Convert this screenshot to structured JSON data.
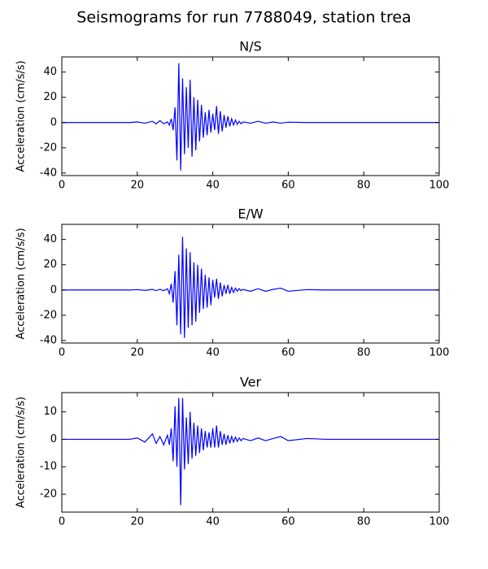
{
  "title": "Seismograms for run 7788049, station trea",
  "chart_data": [
    {
      "type": "line",
      "title": "N/S",
      "ylabel": "Acceleration (cm/s/s)",
      "xlim": [
        0,
        100
      ],
      "xticks": [
        0,
        20,
        40,
        60,
        80,
        100
      ],
      "ylim": [
        -42,
        52
      ],
      "yticks": [
        -40,
        -20,
        0,
        20,
        40
      ],
      "color": "#0000ff",
      "x": [
        0,
        18,
        20,
        22,
        24,
        25,
        26,
        27,
        28,
        28.5,
        29,
        29.5,
        30,
        30.5,
        31,
        31.5,
        32,
        32.5,
        33,
        33.5,
        34,
        34.5,
        35,
        35.5,
        36,
        36.5,
        37,
        37.5,
        38,
        38.5,
        39,
        39.5,
        40,
        40.5,
        41,
        41.5,
        42,
        42.5,
        43,
        43.5,
        44,
        44.5,
        45,
        45.5,
        46,
        46.5,
        47,
        47.5,
        48,
        50,
        52,
        54,
        56,
        58,
        60,
        65,
        70,
        80,
        90,
        100
      ],
      "values": [
        0,
        0,
        0.5,
        -0.5,
        1,
        -1,
        1.5,
        -1,
        0.5,
        -2,
        3,
        -6,
        12,
        -30,
        47,
        -38,
        35,
        -25,
        28,
        -20,
        34,
        -27,
        20,
        -22,
        18,
        -15,
        14,
        -12,
        8,
        -10,
        10,
        -8,
        7,
        -6,
        13,
        -9,
        9,
        -7,
        6,
        -4,
        5,
        -3,
        3,
        -2,
        2,
        -1.5,
        1,
        -1,
        0.5,
        -0.5,
        1,
        -0.5,
        0.5,
        -0.5,
        0.3,
        0,
        0,
        0,
        0,
        0
      ]
    },
    {
      "type": "line",
      "title": "E/W",
      "ylabel": "Acceleration (cm/s/s)",
      "xlim": [
        0,
        100
      ],
      "xticks": [
        0,
        20,
        40,
        60,
        80,
        100
      ],
      "ylim": [
        -42,
        52
      ],
      "yticks": [
        -40,
        -20,
        0,
        20,
        40
      ],
      "color": "#0000ff",
      "x": [
        0,
        18,
        20,
        22,
        24,
        25,
        26,
        27,
        28,
        28.5,
        29,
        29.5,
        30,
        30.5,
        31,
        31.5,
        32,
        32.5,
        33,
        33.5,
        34,
        34.5,
        35,
        35.5,
        36,
        36.5,
        37,
        37.5,
        38,
        38.5,
        39,
        39.5,
        40,
        40.5,
        41,
        41.5,
        42,
        42.5,
        43,
        43.5,
        44,
        44.5,
        45,
        45.5,
        46,
        46.5,
        47,
        47.5,
        48,
        50,
        52,
        54,
        56,
        58,
        60,
        65,
        70,
        80,
        90,
        100
      ],
      "values": [
        0,
        0,
        0.3,
        -0.3,
        0.5,
        -0.5,
        0.5,
        -0.5,
        1,
        -3,
        5,
        -10,
        15,
        -28,
        28,
        -35,
        42,
        -38,
        33,
        -30,
        30,
        -28,
        22,
        -25,
        20,
        -18,
        17,
        -15,
        12,
        -14,
        10,
        -12,
        8,
        -6,
        9,
        -7,
        6,
        -5,
        4,
        -3,
        4,
        -3,
        2,
        -2,
        1.5,
        -1,
        1,
        -0.5,
        0.5,
        -1,
        1,
        -1,
        0.5,
        1.5,
        -1,
        0.3,
        0,
        0,
        0,
        0
      ]
    },
    {
      "type": "line",
      "title": "Ver",
      "ylabel": "Acceleration (cm/s/s)",
      "xlim": [
        0,
        100
      ],
      "xticks": [
        0,
        20,
        40,
        60,
        80,
        100
      ],
      "ylim": [
        -26.5,
        17
      ],
      "yticks": [
        -20,
        -10,
        0,
        10
      ],
      "color": "#0000ff",
      "x": [
        0,
        18,
        20,
        22,
        24,
        25,
        26,
        27,
        28,
        28.5,
        29,
        29.5,
        30,
        30.5,
        31,
        31.5,
        32,
        32.5,
        33,
        33.5,
        34,
        34.5,
        35,
        35.5,
        36,
        36.5,
        37,
        37.5,
        38,
        38.5,
        39,
        39.5,
        40,
        40.5,
        41,
        41.5,
        42,
        42.5,
        43,
        43.5,
        44,
        44.5,
        45,
        45.5,
        46,
        46.5,
        47,
        47.5,
        48,
        50,
        52,
        54,
        56,
        58,
        60,
        65,
        70,
        80,
        90,
        100
      ],
      "values": [
        0,
        0,
        0.5,
        -1,
        2,
        -1.5,
        1,
        -2,
        1.5,
        -2,
        4,
        -8,
        12,
        -10,
        15,
        -24,
        15,
        -11,
        8,
        -9,
        10,
        -7,
        6,
        -6,
        5,
        -5,
        4,
        -4,
        3,
        -3,
        2.5,
        -3,
        4,
        -3,
        5,
        -3,
        3,
        -2,
        2,
        -2,
        1.5,
        -1.5,
        1,
        -1,
        0.8,
        -0.8,
        0.5,
        -0.5,
        0.3,
        -0.5,
        0.5,
        -0.5,
        0.3,
        1,
        -0.5,
        0.3,
        0,
        0,
        0,
        0
      ]
    }
  ]
}
